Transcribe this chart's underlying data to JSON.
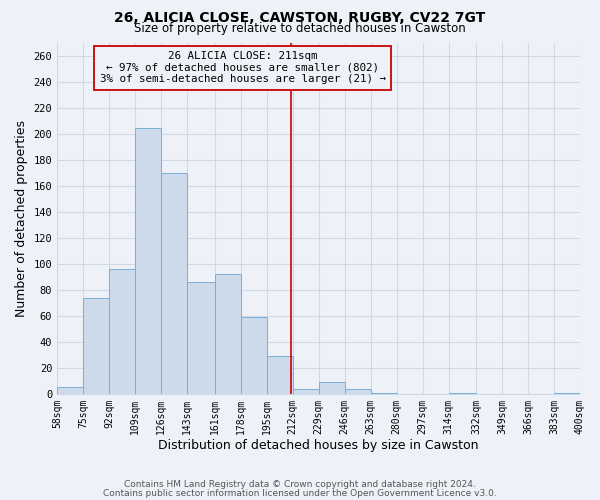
{
  "title": "26, ALICIA CLOSE, CAWSTON, RUGBY, CV22 7GT",
  "subtitle": "Size of property relative to detached houses in Cawston",
  "xlabel": "Distribution of detached houses by size in Cawston",
  "ylabel": "Number of detached properties",
  "bin_edges": [
    58,
    75,
    92,
    109,
    126,
    143,
    161,
    178,
    195,
    212,
    229,
    246,
    263,
    280,
    297,
    314,
    332,
    349,
    366,
    383,
    400
  ],
  "counts": [
    5,
    74,
    96,
    204,
    170,
    86,
    92,
    59,
    29,
    4,
    9,
    4,
    1,
    0,
    0,
    1,
    0,
    0,
    0,
    1
  ],
  "bar_color": "#ccdaec",
  "bar_edgecolor": "#7aafd4",
  "vline_x": 211,
  "vline_color": "#cc0000",
  "annotation_line1": "26 ALICIA CLOSE: 211sqm",
  "annotation_line2": "← 97% of detached houses are smaller (802)",
  "annotation_line3": "3% of semi-detached houses are larger (21) →",
  "annotation_box_edgecolor": "#cc0000",
  "annotation_box_facecolor": "#eef2f8",
  "ylim": [
    0,
    270
  ],
  "yticks": [
    0,
    20,
    40,
    60,
    80,
    100,
    120,
    140,
    160,
    180,
    200,
    220,
    240,
    260
  ],
  "tick_labels": [
    "58sqm",
    "75sqm",
    "92sqm",
    "109sqm",
    "126sqm",
    "143sqm",
    "161sqm",
    "178sqm",
    "195sqm",
    "212sqm",
    "229sqm",
    "246sqm",
    "263sqm",
    "280sqm",
    "297sqm",
    "314sqm",
    "332sqm",
    "349sqm",
    "366sqm",
    "383sqm",
    "400sqm"
  ],
  "footnote1": "Contains HM Land Registry data © Crown copyright and database right 2024.",
  "footnote2": "Contains public sector information licensed under the Open Government Licence v3.0.",
  "background_color": "#eef2f8",
  "grid_color": "#d0d8e8",
  "title_fontsize": 10,
  "subtitle_fontsize": 8.5
}
